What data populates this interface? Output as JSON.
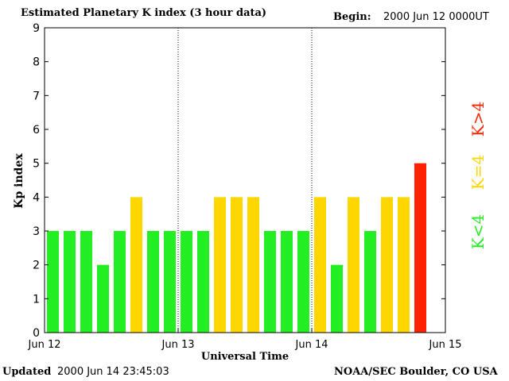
{
  "header": {
    "title": "Estimated Planetary K index (3 hour data)",
    "begin_label": "Begin:",
    "begin_value": "2000 Jun 12 0000UT"
  },
  "footer": {
    "updated_label": "Updated",
    "updated_value": "2000 Jun 14 23:45:03",
    "source": "NOAA/SEC Boulder, CO USA"
  },
  "side_legend": {
    "low": "K<4",
    "mid": "K=4",
    "high": "K>4"
  },
  "colors": {
    "low": "#22ee22",
    "mid": "#ffd700",
    "high": "#ff2200"
  },
  "chart_data": {
    "type": "bar",
    "ylabel": "Kp index",
    "xlabel": "Universal Time",
    "ylim": [
      0,
      9
    ],
    "yticks": [
      0,
      1,
      2,
      3,
      4,
      5,
      6,
      7,
      8,
      9
    ],
    "xtick_labels": [
      "Jun 12",
      "Jun 13",
      "Jun 14",
      "Jun 15"
    ],
    "day_dividers_after_bar": [
      8,
      16
    ],
    "values": [
      3,
      3,
      3,
      2,
      3,
      4,
      3,
      3,
      3,
      3,
      4,
      4,
      4,
      3,
      3,
      3,
      4,
      2,
      4,
      3,
      4,
      4,
      5
    ]
  }
}
